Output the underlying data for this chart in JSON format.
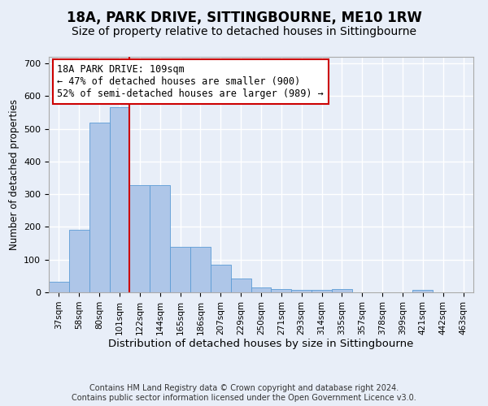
{
  "title": "18A, PARK DRIVE, SITTINGBOURNE, ME10 1RW",
  "subtitle": "Size of property relative to detached houses in Sittingbourne",
  "xlabel": "Distribution of detached houses by size in Sittingbourne",
  "ylabel": "Number of detached properties",
  "categories": [
    "37sqm",
    "58sqm",
    "80sqm",
    "101sqm",
    "122sqm",
    "144sqm",
    "165sqm",
    "186sqm",
    "207sqm",
    "229sqm",
    "250sqm",
    "271sqm",
    "293sqm",
    "314sqm",
    "335sqm",
    "357sqm",
    "378sqm",
    "399sqm",
    "421sqm",
    "442sqm",
    "463sqm"
  ],
  "values": [
    32,
    190,
    520,
    565,
    328,
    328,
    140,
    140,
    85,
    42,
    15,
    10,
    8,
    8,
    10,
    0,
    0,
    0,
    8,
    0,
    0
  ],
  "bar_color": "#aec6e8",
  "bar_edge_color": "#5b9bd5",
  "vline_x": 3.5,
  "vline_color": "#cc0000",
  "annotation_text": "18A PARK DRIVE: 109sqm\n← 47% of detached houses are smaller (900)\n52% of semi-detached houses are larger (989) →",
  "annotation_box_color": "#ffffff",
  "annotation_box_edge": "#cc0000",
  "ylim": [
    0,
    720
  ],
  "yticks": [
    0,
    100,
    200,
    300,
    400,
    500,
    600,
    700
  ],
  "footer": "Contains HM Land Registry data © Crown copyright and database right 2024.\nContains public sector information licensed under the Open Government Licence v3.0.",
  "background_color": "#e8eef8",
  "grid_color": "#ffffff",
  "title_fontsize": 12,
  "subtitle_fontsize": 10,
  "xlabel_fontsize": 9.5,
  "ylabel_fontsize": 8.5,
  "footer_fontsize": 7,
  "annotation_fontsize": 8.5
}
